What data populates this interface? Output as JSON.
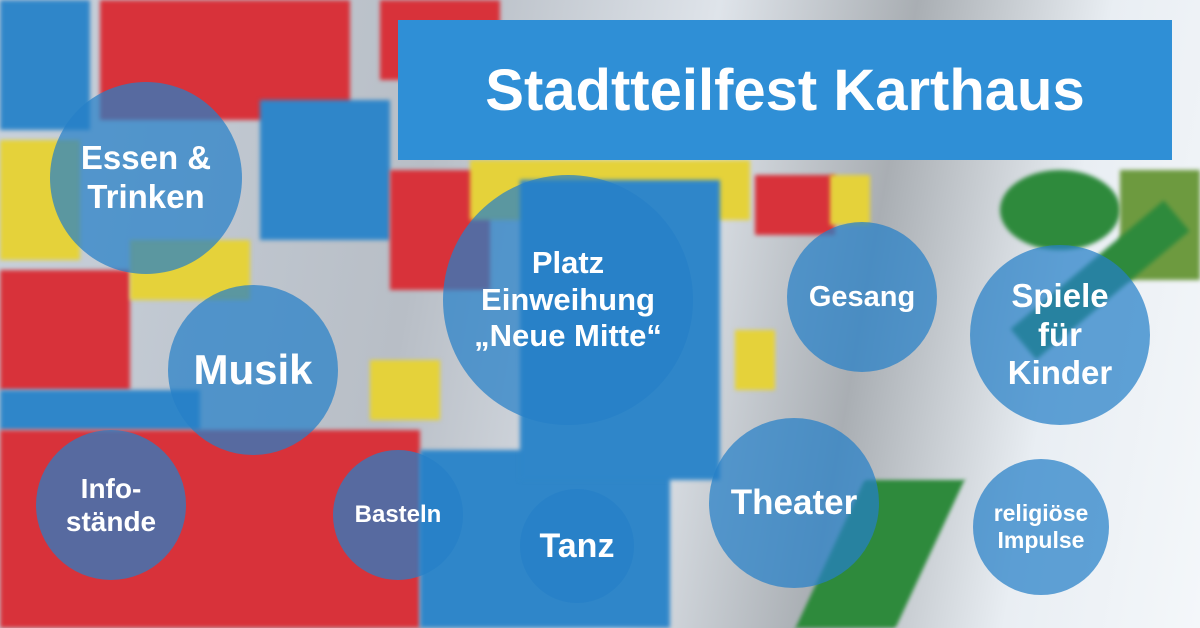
{
  "title": "Stadtteilfest Karthaus",
  "colors": {
    "title_box": "#2f8fd6",
    "bubble": "#2680c8",
    "text": "#ffffff"
  },
  "bubbles": [
    {
      "label": "Essen &\nTrinken"
    },
    {
      "label": "Musik"
    },
    {
      "label": "Info-\nstände"
    },
    {
      "label": "Basteln"
    },
    {
      "label": "Tanz"
    },
    {
      "label": "Platz\nEinweihung\n„Neue Mitte“"
    },
    {
      "label": "Theater"
    },
    {
      "label": "Gesang"
    },
    {
      "label": "Spiele\nfür\nKinder"
    },
    {
      "label": "religiöse\nImpulse"
    }
  ]
}
